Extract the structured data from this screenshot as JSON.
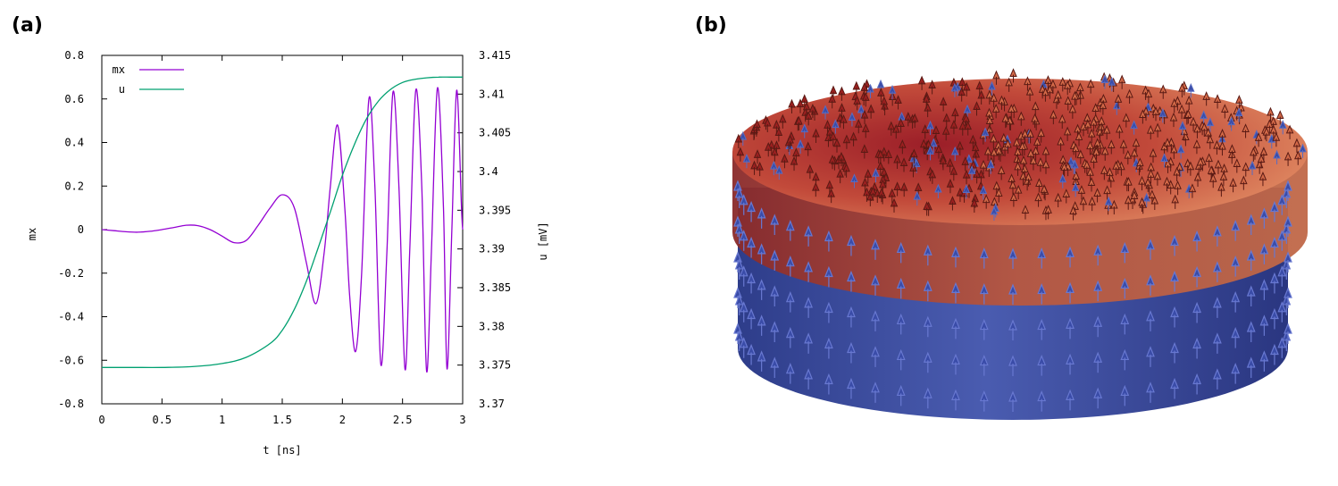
{
  "panels": {
    "a": "(a)",
    "b": "(b)"
  },
  "chart_data": {
    "type": "line",
    "title": "",
    "xlabel": "t [ns]",
    "ylabel": "mx",
    "y2label": "u [mV]",
    "xlim": [
      0,
      3
    ],
    "ylim": [
      -0.8,
      0.8
    ],
    "y2lim": [
      3.37,
      3.415
    ],
    "xticks": [
      "0",
      "0.5",
      "1",
      "1.5",
      "2",
      "2.5",
      "3"
    ],
    "xtick_values": [
      0,
      0.5,
      1,
      1.5,
      2,
      2.5,
      3
    ],
    "yticks": [
      "0.8",
      "0.6",
      "0.4",
      "0.2",
      "0",
      "-0.2",
      "-0.4",
      "-0.6",
      "-0.8"
    ],
    "ytick_values": [
      0.8,
      0.6,
      0.4,
      0.2,
      0,
      -0.2,
      -0.4,
      -0.6,
      -0.8
    ],
    "y2ticks": [
      "3.415",
      "3.41",
      "3.405",
      "3.4",
      "3.395",
      "3.39",
      "3.385",
      "3.38",
      "3.375",
      "3.37"
    ],
    "y2tick_values": [
      3.415,
      3.41,
      3.405,
      3.4,
      3.395,
      3.39,
      3.385,
      3.38,
      3.375,
      3.37
    ],
    "grid": false,
    "legend_position": "top-left",
    "series": [
      {
        "name": "mx",
        "axis": "left",
        "color": "#9400d3",
        "x": [
          0,
          0.1,
          0.2,
          0.3,
          0.4,
          0.5,
          0.6,
          0.7,
          0.8,
          0.9,
          1.0,
          1.1,
          1.2,
          1.3,
          1.4,
          1.5,
          1.6,
          1.7,
          1.78,
          1.85,
          1.9,
          1.96,
          2.02,
          2.06,
          2.11,
          2.16,
          2.22,
          2.27,
          2.32,
          2.37,
          2.42,
          2.47,
          2.52,
          2.56,
          2.61,
          2.66,
          2.7,
          2.74,
          2.79,
          2.84,
          2.87,
          2.91,
          2.95,
          2.99,
          3.0
        ],
        "y": [
          0.0,
          -0.005,
          -0.01,
          -0.012,
          -0.008,
          0.0,
          0.01,
          0.02,
          0.018,
          0.0,
          -0.03,
          -0.06,
          -0.05,
          0.02,
          0.1,
          0.16,
          0.1,
          -0.15,
          -0.34,
          -0.1,
          0.2,
          0.48,
          0.1,
          -0.3,
          -0.56,
          -0.2,
          0.6,
          0.2,
          -0.62,
          -0.1,
          0.63,
          0.2,
          -0.64,
          -0.1,
          0.64,
          0.2,
          -0.65,
          -0.1,
          0.65,
          0.1,
          -0.64,
          0.0,
          0.64,
          0.1,
          0.0
        ]
      },
      {
        "name": "u",
        "axis": "right",
        "color": "#00a070",
        "x": [
          0,
          0.25,
          0.5,
          0.75,
          1.0,
          1.2,
          1.4,
          1.5,
          1.6,
          1.7,
          1.8,
          1.9,
          2.0,
          2.1,
          2.2,
          2.3,
          2.4,
          2.5,
          2.6,
          2.7,
          2.8,
          2.9,
          3.0
        ],
        "y": [
          3.3747,
          3.3747,
          3.3747,
          3.3748,
          3.3752,
          3.376,
          3.3778,
          3.3795,
          3.3822,
          3.3858,
          3.3902,
          3.3948,
          3.3995,
          3.4035,
          3.4068,
          3.4091,
          3.4106,
          3.4115,
          3.4119,
          3.4121,
          3.4122,
          3.4122,
          3.4122
        ]
      }
    ]
  }
}
